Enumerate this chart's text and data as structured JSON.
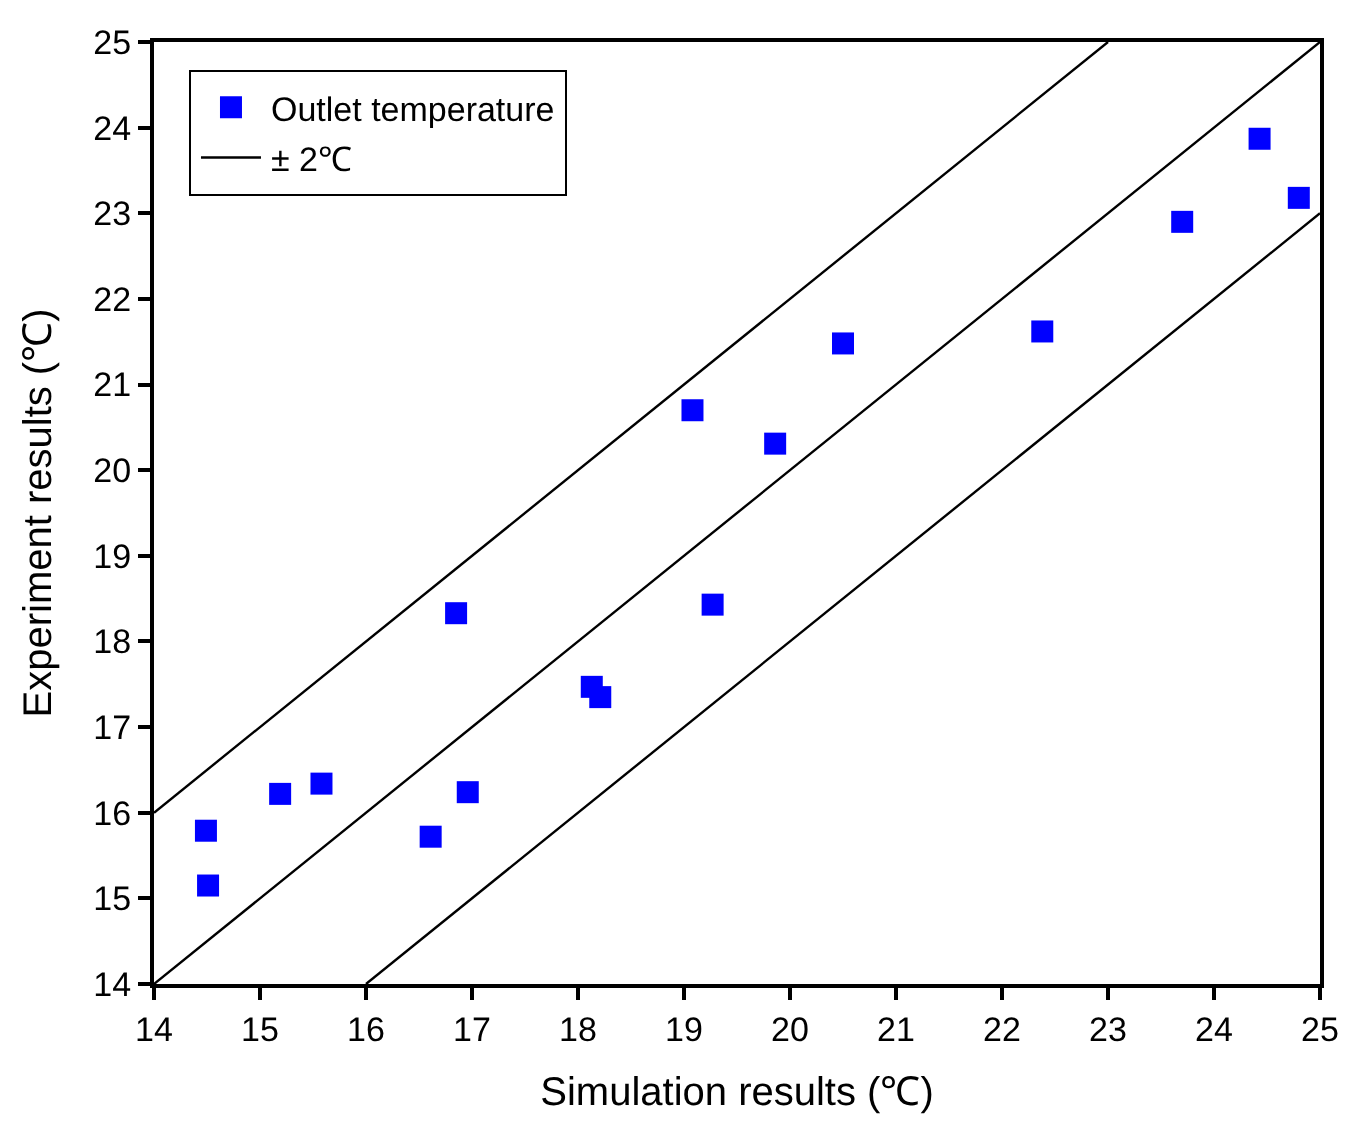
{
  "chart_data": {
    "type": "scatter",
    "xlabel": "Simulation results (℃)",
    "ylabel": "Experiment results (℃)",
    "series": [
      {
        "name": "Outlet temperature",
        "color": "#0000ff",
        "marker": "square",
        "x": [
          14.49,
          14.51,
          15.19,
          15.58,
          16.61,
          16.85,
          16.96,
          18.13,
          18.21,
          19.08,
          19.27,
          19.86,
          20.5,
          22.38,
          23.7,
          24.43,
          24.8
        ],
        "values": [
          15.79,
          15.15,
          16.22,
          16.34,
          15.72,
          18.33,
          16.24,
          17.47,
          17.35,
          20.7,
          18.43,
          20.31,
          21.48,
          21.62,
          22.9,
          23.87,
          23.18
        ]
      },
      {
        "name": "± 2℃",
        "type": "line",
        "color": "#000000",
        "marker": "none",
        "line_style": "solid",
        "x": [
          14,
          23
        ],
        "values": [
          16,
          25
        ]
      },
      {
        "type": "line",
        "color": "#000000",
        "marker": "none",
        "line_style": "solid",
        "x": [
          14,
          25
        ],
        "values": [
          14,
          25
        ]
      },
      {
        "type": "line",
        "color": "#000000",
        "marker": "none",
        "line_style": "solid",
        "x": [
          16,
          25
        ],
        "values": [
          14,
          23
        ]
      }
    ],
    "xlim": [
      14,
      25
    ],
    "xticks": [
      14,
      15,
      16,
      17,
      18,
      19,
      20,
      21,
      22,
      23,
      24,
      25
    ],
    "ylim": [
      14,
      25
    ],
    "yticks": [
      14,
      15,
      16,
      17,
      18,
      19,
      20,
      21,
      22,
      23,
      24,
      25
    ],
    "legend": "top left"
  }
}
